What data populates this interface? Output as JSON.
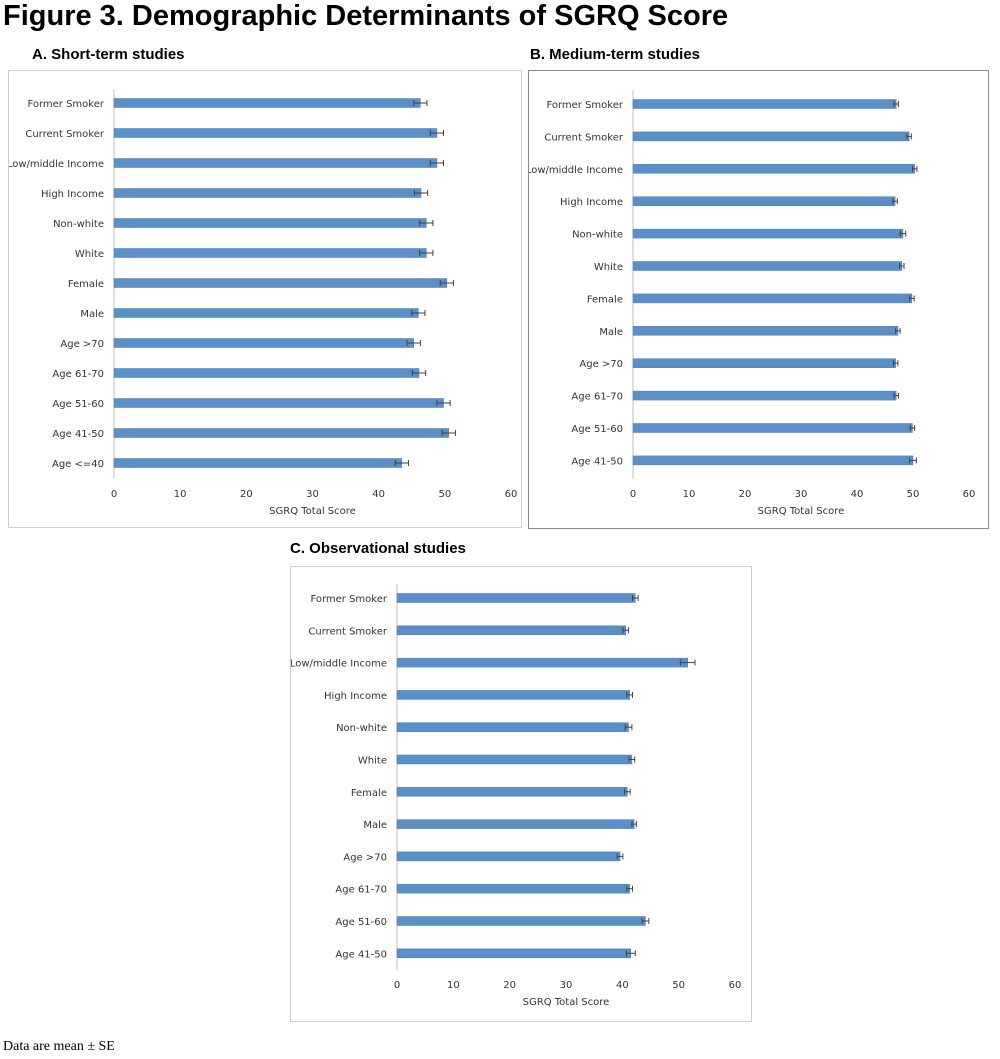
{
  "figure_title": "Figure 3. Demographic Determinants of SGRQ Score",
  "footnote": "Data are mean ± SE",
  "colors": {
    "bar": "#5b8fc7",
    "bar_edge": "#4a7db5",
    "axis": "#bfbfbf",
    "error": "#404040"
  },
  "chart_data": [
    {
      "type": "bar",
      "orientation": "horizontal",
      "title": "A.  Short-term studies",
      "xlabel": "SGRQ Total Score",
      "ylabel": "",
      "xlim": [
        0,
        60
      ],
      "xticks": [
        0,
        10,
        20,
        30,
        40,
        50,
        60
      ],
      "categories": [
        "Former Smoker",
        "Current Smoker",
        "Low/middle Income",
        "High Income",
        "Non-white",
        "White",
        "Female",
        "Male",
        "Age >70",
        "Age 61-70",
        "Age 51-60",
        "Age 41-50",
        "Age <=40"
      ],
      "values": [
        46.3,
        48.8,
        48.8,
        46.4,
        47.2,
        47.2,
        50.3,
        46.0,
        45.3,
        46.1,
        49.8,
        50.6,
        43.5
      ],
      "errors": [
        1.0,
        1.0,
        1.0,
        1.0,
        1.0,
        1.0,
        1.0,
        1.0,
        1.0,
        1.0,
        1.0,
        1.0,
        1.0
      ]
    },
    {
      "type": "bar",
      "orientation": "horizontal",
      "title": "B. Medium-term studies",
      "xlabel": "SGRQ Total Score",
      "ylabel": "",
      "xlim": [
        0,
        60
      ],
      "xticks": [
        0,
        10,
        20,
        30,
        40,
        50,
        60
      ],
      "categories": [
        "Former Smoker",
        "Current Smoker",
        "Low/middle Income",
        "High Income",
        "Non-white",
        "White",
        "Female",
        "Male",
        "Age >70",
        "Age 61-70",
        "Age 51-60",
        "Age 41-50"
      ],
      "values": [
        47.0,
        49.3,
        50.3,
        46.8,
        48.2,
        48.0,
        49.8,
        47.3,
        46.9,
        47.0,
        49.9,
        50.0
      ],
      "errors": [
        0.4,
        0.4,
        0.4,
        0.4,
        0.5,
        0.4,
        0.4,
        0.4,
        0.4,
        0.4,
        0.4,
        0.6
      ]
    },
    {
      "type": "bar",
      "orientation": "horizontal",
      "title": "C. Observational studies",
      "xlabel": "SGRQ Total Score",
      "ylabel": "",
      "xlim": [
        0,
        60
      ],
      "xticks": [
        0,
        10,
        20,
        30,
        40,
        50,
        60
      ],
      "categories": [
        "Former Smoker",
        "Current Smoker",
        "Low/middle Income",
        "High Income",
        "Non-white",
        "White",
        "Female",
        "Male",
        "Age >70",
        "Age 61-70",
        "Age 51-60",
        "Age 41-50"
      ],
      "values": [
        42.3,
        40.6,
        51.6,
        41.3,
        41.1,
        41.7,
        40.9,
        42.1,
        39.6,
        41.3,
        44.1,
        41.5
      ],
      "errors": [
        0.5,
        0.5,
        1.3,
        0.5,
        0.6,
        0.5,
        0.5,
        0.4,
        0.5,
        0.5,
        0.6,
        0.8
      ]
    }
  ]
}
